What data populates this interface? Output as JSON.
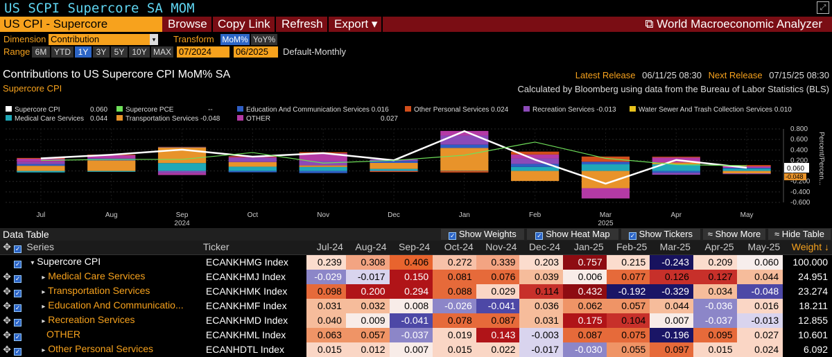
{
  "window": {
    "title": "US SCPI Supercore SA MOM"
  },
  "toolbar": {
    "security": "US CPI - Supercore",
    "browse": "Browse",
    "copy_link": "Copy Link",
    "refresh": "Refresh",
    "export": "Export ▾",
    "app_name": "World Macroeconomic Analyzer"
  },
  "controls": {
    "dimension_label": "Dimension",
    "dimension_value": "Contribution",
    "transform_label": "Transform",
    "mom": "MoM%",
    "yoy": "YoY%",
    "range_label": "Range",
    "ranges": [
      "6M",
      "YTD",
      "1Y",
      "3Y",
      "5Y",
      "10Y",
      "MAX"
    ],
    "start": "07/2024",
    "end": "06/2025",
    "sep": "-",
    "frequency": "Default-Monthly"
  },
  "chart_header": {
    "title": "Contributions to US Supercore CPI MoM% SA",
    "subtitle": "Supercore CPI",
    "latest_label": "Latest Release",
    "latest_value": "06/11/25 08:30",
    "next_label": "Next Release",
    "next_value": "07/15/25 08:30",
    "source": "Calculated by Bloomberg using data from the Bureau of Labor Statistics (BLS)"
  },
  "legend": [
    {
      "name": "Supercore CPI",
      "value": "0.060",
      "color": "#ffffff"
    },
    {
      "name": "Supercore PCE",
      "value": "--",
      "color": "#6fe05a"
    },
    {
      "name": "Education And Communication Services",
      "value": "0.016",
      "color": "#2f5ec4"
    },
    {
      "name": "Other Personal Services",
      "value": "0.024",
      "color": "#d24e1b"
    },
    {
      "name": "Recreation Services",
      "value": "-0.013",
      "color": "#8c4ab8"
    },
    {
      "name": "Water Sewer And Trash Collection Services",
      "value": "0.010",
      "color": "#e8c21c"
    },
    {
      "name": "Medical Care Services",
      "value": "0.044",
      "color": "#1fa8b8"
    },
    {
      "name": "Transportation Services",
      "value": "-0.048",
      "color": "#e8932a"
    },
    {
      "name": "OTHER",
      "value": "0.027",
      "color": "#b43aa5"
    }
  ],
  "chart_data": {
    "type": "bar",
    "stacked": true,
    "categories": [
      "Jul",
      "Aug",
      "Sep",
      "Oct",
      "Nov",
      "Dec",
      "Jan",
      "Feb",
      "Mar",
      "Apr",
      "May"
    ],
    "year_labels": [
      "2024",
      "2025"
    ],
    "ylim": [
      -0.6,
      0.8
    ],
    "yticks": [
      "0.800",
      "0.600",
      "0.400",
      "0.200",
      "0",
      "-0.200",
      "-0.400",
      "-0.600"
    ],
    "ylabel": "Percent/Percen...",
    "last_value_label": "0.060",
    "last_value_label_2": "-0.048",
    "series": [
      {
        "name": "Medical Care Services",
        "color": "#1fa8b8",
        "values": [
          -0.029,
          -0.017,
          0.15,
          0.081,
          0.076,
          0.039,
          0.006,
          0.077,
          0.126,
          0.127,
          0.044
        ]
      },
      {
        "name": "Transportation Services",
        "color": "#e8932a",
        "values": [
          0.098,
          0.2,
          0.294,
          0.088,
          0.029,
          0.114,
          0.432,
          -0.192,
          -0.329,
          0.034,
          -0.048
        ]
      },
      {
        "name": "Education And Communication Services",
        "color": "#2f5ec4",
        "values": [
          0.031,
          0.032,
          0.008,
          -0.026,
          -0.041,
          0.036,
          0.062,
          0.057,
          0.044,
          -0.036,
          0.016
        ]
      },
      {
        "name": "Recreation Services",
        "color": "#8c4ab8",
        "values": [
          0.04,
          0.009,
          -0.041,
          0.078,
          0.087,
          0.031,
          0.175,
          0.104,
          0.007,
          -0.037,
          -0.013
        ]
      },
      {
        "name": "OTHER",
        "color": "#b43aa5",
        "values": [
          0.063,
          0.057,
          -0.037,
          0.019,
          0.143,
          -0.003,
          0.087,
          0.075,
          -0.196,
          0.095,
          0.027
        ]
      },
      {
        "name": "Other Personal Services",
        "color": "#d24e1b",
        "values": [
          0.015,
          0.012,
          0.007,
          0.015,
          0.022,
          -0.017,
          -0.03,
          0.055,
          0.097,
          0.015,
          0.024
        ]
      }
    ],
    "lines": [
      {
        "name": "Supercore CPI",
        "color": "#ffffff",
        "values": [
          0.239,
          0.308,
          0.406,
          0.272,
          0.339,
          0.203,
          0.757,
          0.215,
          -0.243,
          0.209,
          0.06
        ]
      },
      {
        "name": "Supercore PCE",
        "color": "#6fe05a",
        "values": [
          0.2,
          0.22,
          0.22,
          0.35,
          0.15,
          0.2,
          0.3,
          0.55,
          0.24,
          0.12,
          0.1
        ]
      }
    ]
  },
  "data_table": {
    "title": "Data Table",
    "opts": [
      "Show Weights",
      "Show Heat Map",
      "Show Tickers",
      "Show More",
      "Hide Table"
    ],
    "headers": {
      "series": "Series",
      "ticker": "Ticker",
      "weight": "Weight ↓",
      "months": [
        "Jul-24",
        "Aug-24",
        "Sep-24",
        "Oct-24",
        "Nov-24",
        "Dec-24",
        "Jan-25",
        "Feb-25",
        "Mar-25",
        "Apr-25",
        "May-25"
      ]
    },
    "rows": [
      {
        "name": "Supercore CPI",
        "ticker": "ECANKHMG Index",
        "values": [
          "0.239",
          "0.308",
          "0.406",
          "0.272",
          "0.339",
          "0.203",
          "0.757",
          "0.215",
          "-0.243",
          "0.209",
          "0.060"
        ],
        "weight": "100.000"
      },
      {
        "name": "Medical Care Services",
        "ticker": "ECANKHMJ Index",
        "values": [
          "-0.029",
          "-0.017",
          "0.150",
          "0.081",
          "0.076",
          "0.039",
          "0.006",
          "0.077",
          "0.126",
          "0.127",
          "0.044"
        ],
        "weight": "24.951"
      },
      {
        "name": "Transportation Services",
        "ticker": "ECANKHMK Index",
        "values": [
          "0.098",
          "0.200",
          "0.294",
          "0.088",
          "0.029",
          "0.114",
          "0.432",
          "-0.192",
          "-0.329",
          "0.034",
          "-0.048"
        ],
        "weight": "23.274"
      },
      {
        "name": "Education And Communicatio...",
        "ticker": "ECANKHMF Index",
        "values": [
          "0.031",
          "0.032",
          "0.008",
          "-0.026",
          "-0.041",
          "0.036",
          "0.062",
          "0.057",
          "0.044",
          "-0.036",
          "0.016"
        ],
        "weight": "18.211"
      },
      {
        "name": "Recreation Services",
        "ticker": "ECANKHMD Index",
        "values": [
          "0.040",
          "0.009",
          "-0.041",
          "0.078",
          "0.087",
          "0.031",
          "0.175",
          "0.104",
          "0.007",
          "-0.037",
          "-0.013"
        ],
        "weight": "12.855"
      },
      {
        "name": "OTHER",
        "ticker": "ECANKHML Index",
        "values": [
          "0.063",
          "0.057",
          "-0.037",
          "0.019",
          "0.143",
          "-0.003",
          "0.087",
          "0.075",
          "-0.196",
          "0.095",
          "0.027"
        ],
        "weight": "10.601"
      },
      {
        "name": "Other Personal Services",
        "ticker": "ECANHDTL Index",
        "values": [
          "0.015",
          "0.012",
          "0.007",
          "0.015",
          "0.022",
          "-0.017",
          "-0.030",
          "0.055",
          "0.097",
          "0.015",
          "0.024"
        ],
        "weight": "6.092"
      }
    ]
  }
}
